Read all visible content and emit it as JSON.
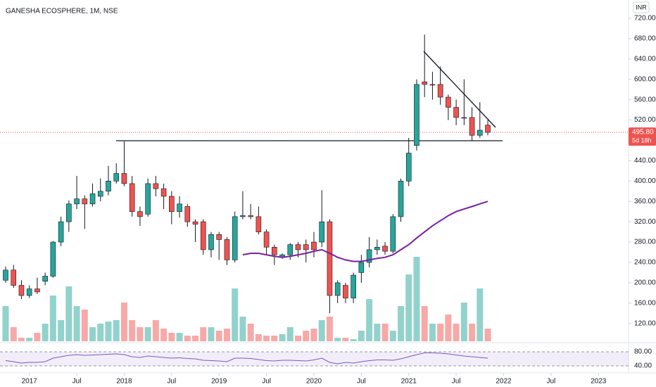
{
  "chart_data": {
    "type": "candlestick",
    "title": "GANESHA ECOSPHERE, 1M, NSE",
    "currency": "INR",
    "x": [
      "2016-10",
      "2016-11",
      "2016-12",
      "2017-01",
      "2017-02",
      "2017-03",
      "2017-04",
      "2017-05",
      "2017-06",
      "2017-07",
      "2017-08",
      "2017-09",
      "2017-10",
      "2017-11",
      "2017-12",
      "2018-01",
      "2018-02",
      "2018-03",
      "2018-04",
      "2018-05",
      "2018-06",
      "2018-07",
      "2018-08",
      "2018-09",
      "2018-10",
      "2018-11",
      "2018-12",
      "2019-01",
      "2019-02",
      "2019-03",
      "2019-04",
      "2019-05",
      "2019-06",
      "2019-07",
      "2019-08",
      "2019-09",
      "2019-10",
      "2019-11",
      "2019-12",
      "2020-01",
      "2020-02",
      "2020-03",
      "2020-04",
      "2020-05",
      "2020-06",
      "2020-07",
      "2020-08",
      "2020-09",
      "2020-10",
      "2020-11",
      "2020-12",
      "2021-01",
      "2021-02",
      "2021-03",
      "2021-04",
      "2021-05",
      "2021-06",
      "2021-07",
      "2021-08",
      "2021-09",
      "2021-10",
      "2021-11"
    ],
    "open": [
      205,
      225,
      195,
      175,
      188,
      203,
      213,
      280,
      320,
      355,
      365,
      355,
      370,
      380,
      400,
      415,
      395,
      340,
      335,
      395,
      385,
      370,
      340,
      350,
      320,
      320,
      265,
      295,
      285,
      245,
      330,
      332,
      330,
      300,
      270,
      250,
      255,
      275,
      275,
      280,
      280,
      320,
      175,
      195,
      170,
      220,
      240,
      265,
      272,
      262,
      330,
      400,
      470,
      595,
      590,
      590,
      565,
      545,
      525,
      525,
      490,
      510
    ],
    "high": [
      232,
      235,
      205,
      195,
      210,
      220,
      282,
      330,
      362,
      410,
      372,
      395,
      405,
      430,
      435,
      478,
      410,
      350,
      405,
      410,
      395,
      380,
      370,
      355,
      325,
      325,
      300,
      300,
      290,
      340,
      380,
      355,
      350,
      305,
      275,
      258,
      278,
      280,
      285,
      300,
      382,
      325,
      205,
      200,
      220,
      255,
      290,
      285,
      280,
      335,
      405,
      485,
      600,
      688,
      615,
      625,
      570,
      560,
      600,
      545,
      555,
      520
    ],
    "low": [
      200,
      190,
      168,
      170,
      178,
      195,
      210,
      272,
      300,
      345,
      306,
      350,
      360,
      372,
      395,
      390,
      330,
      312,
      330,
      370,
      345,
      315,
      328,
      310,
      280,
      255,
      250,
      245,
      235,
      240,
      325,
      325,
      295,
      255,
      235,
      247,
      245,
      250,
      240,
      250,
      270,
      140,
      160,
      160,
      160,
      200,
      230,
      255,
      255,
      258,
      320,
      390,
      460,
      565,
      560,
      550,
      520,
      510,
      510,
      480,
      485,
      490
    ],
    "close": [
      225,
      195,
      175,
      188,
      182,
      213,
      280,
      320,
      355,
      365,
      355,
      375,
      380,
      400,
      415,
      395,
      340,
      330,
      395,
      385,
      370,
      340,
      355,
      320,
      315,
      265,
      295,
      285,
      245,
      330,
      332,
      330,
      300,
      270,
      255,
      255,
      275,
      265,
      265,
      265,
      320,
      175,
      200,
      170,
      215,
      240,
      265,
      270,
      262,
      330,
      400,
      455,
      590,
      590,
      590,
      565,
      545,
      525,
      525,
      490,
      500,
      495.8
    ],
    "volume": [
      50,
      20,
      5,
      5,
      12,
      25,
      65,
      30,
      78,
      50,
      45,
      20,
      25,
      28,
      30,
      55,
      30,
      20,
      20,
      30,
      18,
      12,
      12,
      8,
      8,
      20,
      20,
      15,
      18,
      75,
      35,
      25,
      10,
      8,
      8,
      10,
      20,
      8,
      15,
      18,
      30,
      35,
      5,
      5,
      3,
      15,
      60,
      25,
      25,
      15,
      50,
      95,
      120,
      50,
      25,
      25,
      38,
      25,
      55,
      25,
      75,
      18
    ],
    "up_color": "#26a69a",
    "down_color": "#ef5350",
    "ma": {
      "color": "#7b1fa2",
      "values": [
        null,
        null,
        null,
        null,
        null,
        null,
        null,
        null,
        null,
        null,
        null,
        null,
        null,
        null,
        null,
        null,
        null,
        null,
        null,
        null,
        null,
        null,
        null,
        null,
        null,
        null,
        null,
        null,
        null,
        null,
        255,
        258,
        258,
        255,
        252,
        250,
        252,
        255,
        258,
        262,
        265,
        258,
        250,
        245,
        242,
        242,
        245,
        248,
        250,
        255,
        265,
        275,
        288,
        300,
        312,
        322,
        332,
        340,
        345,
        350,
        355,
        360
      ]
    },
    "rsi": {
      "color": "#7e57c2",
      "values": [
        55,
        52,
        48,
        50,
        50,
        52,
        62,
        66,
        70,
        72,
        70,
        71,
        72,
        73,
        74,
        72,
        66,
        64,
        68,
        66,
        64,
        62,
        63,
        61,
        60,
        56,
        55,
        54,
        52,
        62,
        62,
        61,
        58,
        55,
        54,
        56,
        56,
        55,
        54,
        57,
        62,
        50,
        46,
        50,
        48,
        52,
        55,
        57,
        57,
        56,
        60,
        66,
        72,
        77,
        77,
        76,
        74,
        71,
        68,
        66,
        64,
        62
      ],
      "yticks": [
        {
          "value": 80,
          "label": "80.00"
        },
        {
          "value": 40,
          "label": "40.00"
        }
      ]
    },
    "ylim": [
      85,
      756
    ],
    "yticks": [
      {
        "value": 720,
        "label": "720.00"
      },
      {
        "value": 680,
        "label": "680.00"
      },
      {
        "value": 640,
        "label": "640.00"
      },
      {
        "value": 600,
        "label": "600.00"
      },
      {
        "value": 560,
        "label": "560.00"
      },
      {
        "value": 520,
        "label": "520.00"
      },
      {
        "value": 440,
        "label": "440.00"
      },
      {
        "value": 400,
        "label": "400.00"
      },
      {
        "value": 360,
        "label": "360.00"
      },
      {
        "value": 320,
        "label": "320.00"
      },
      {
        "value": 280,
        "label": "280.00"
      },
      {
        "value": 240,
        "label": "240.00"
      },
      {
        "value": 200,
        "label": "200.00"
      },
      {
        "value": 160,
        "label": "160.00"
      },
      {
        "value": 120,
        "label": "120.00"
      }
    ],
    "xticks": [
      {
        "value": "2017-01",
        "label": "2017"
      },
      {
        "value": "2017-07",
        "label": "Jul"
      },
      {
        "value": "2018-01",
        "label": "2018"
      },
      {
        "value": "2018-07",
        "label": "Jul"
      },
      {
        "value": "2019-01",
        "label": "2019"
      },
      {
        "value": "2019-07",
        "label": "Jul"
      },
      {
        "value": "2020-01",
        "label": "2020"
      },
      {
        "value": "2020-07",
        "label": "Jul"
      },
      {
        "value": "2021-01",
        "label": "2021"
      },
      {
        "value": "2021-07",
        "label": "Jul"
      },
      {
        "value": "2022-01",
        "label": "2022"
      },
      {
        "value": "2022-07",
        "label": "Jul"
      },
      {
        "value": "2023-01",
        "label": "2023"
      }
    ],
    "last_price": {
      "value": 495.8,
      "label": "495.80"
    },
    "countdown": "5d 18h"
  }
}
